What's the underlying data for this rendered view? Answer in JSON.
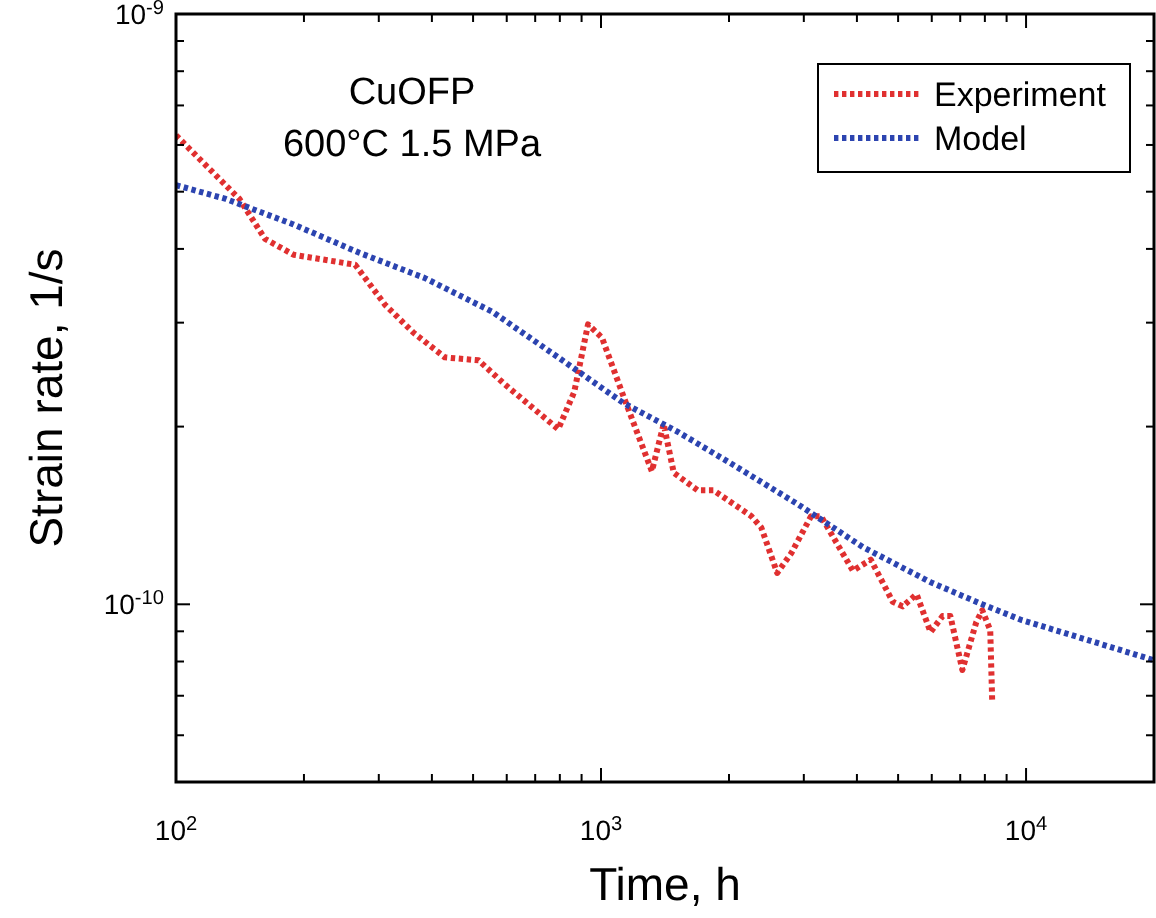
{
  "chart_data": {
    "type": "line",
    "xlabel": "Time, h",
    "ylabel": "Strain rate, 1/s",
    "log": "xy",
    "legend": "top right",
    "line_style": "dotted",
    "annotations": [
      "CuOFP",
      "600°C 1.5 MPa"
    ],
    "xlim": [
      100,
      20000
    ],
    "ylim": [
      5e-11,
      1e-09
    ],
    "xticks": [
      {
        "value": 100,
        "label": "10$^{2}$"
      },
      {
        "value": 200,
        "label": null
      },
      {
        "value": 300,
        "label": null
      },
      {
        "value": 400,
        "label": null
      },
      {
        "value": 500,
        "label": null
      },
      {
        "value": 600,
        "label": null
      },
      {
        "value": 700,
        "label": null
      },
      {
        "value": 800,
        "label": null
      },
      {
        "value": 900,
        "label": null
      },
      {
        "value": 1000,
        "label": "10$^{3}$"
      },
      {
        "value": 2000,
        "label": null
      },
      {
        "value": 3000,
        "label": null
      },
      {
        "value": 4000,
        "label": null
      },
      {
        "value": 5000,
        "label": null
      },
      {
        "value": 6000,
        "label": null
      },
      {
        "value": 7000,
        "label": null
      },
      {
        "value": 8000,
        "label": null
      },
      {
        "value": 9000,
        "label": null
      },
      {
        "value": 10000,
        "label": "10$^{4}$"
      },
      {
        "value": 20000,
        "label": null
      }
    ],
    "yticks": [
      {
        "value": 6e-11,
        "label": null
      },
      {
        "value": 7e-11,
        "label": null
      },
      {
        "value": 8e-11,
        "label": null
      },
      {
        "value": 9e-11,
        "label": null
      },
      {
        "value": 1e-10,
        "label": "10$^{-10}$"
      },
      {
        "value": 2e-10,
        "label": null
      },
      {
        "value": 3e-10,
        "label": null
      },
      {
        "value": 4e-10,
        "label": null
      },
      {
        "value": 5e-10,
        "label": null
      },
      {
        "value": 6e-10,
        "label": null
      },
      {
        "value": 7e-10,
        "label": null
      },
      {
        "value": 8e-10,
        "label": null
      },
      {
        "value": 9e-10,
        "label": null
      },
      {
        "value": 1e-09,
        "label": "10$^{-9}$"
      }
    ],
    "series": [
      {
        "name": "Experiment",
        "color": "#e03030",
        "x": [
          100,
          120,
          141,
          162,
          189,
          264,
          310,
          361,
          429,
          515,
          593,
          793,
          865,
          932,
          1005,
          1132,
          1317,
          1404,
          1483,
          1688,
          1839,
          2258,
          2382,
          2597,
          2802,
          3120,
          3293,
          3913,
          4312,
          4856,
          5124,
          5527,
          5961,
          6361,
          6637,
          7082,
          7637,
          7888,
          8236,
          8325
        ],
        "values": [
          6.23e-10,
          5.46e-10,
          4.86e-10,
          4.16e-10,
          3.91e-10,
          3.76e-10,
          3.22e-10,
          2.89e-10,
          2.62e-10,
          2.59e-10,
          2.36e-10,
          1.98e-10,
          2.29e-10,
          2.98e-10,
          2.83e-10,
          2.24e-10,
          1.68e-10,
          2.02e-10,
          1.67e-10,
          1.56e-10,
          1.56e-10,
          1.41e-10,
          1.35e-10,
          1.13e-10,
          1.22e-10,
          1.41e-10,
          1.41e-10,
          1.14e-10,
          1.19e-10,
          1.01e-10,
          9.92e-11,
          1.04e-10,
          8.97e-11,
          9.55e-11,
          9.55e-11,
          7.74e-11,
          9.33e-11,
          9.77e-11,
          9.04e-11,
          6.84e-11
        ]
      },
      {
        "name": "Model",
        "color": "#2c44b0",
        "x": [
          100,
          131,
          189,
          270,
          385,
          555,
          793,
          1132,
          1515,
          2027,
          2893,
          4130,
          5961,
          7888,
          9787,
          12140,
          20000
        ],
        "values": [
          5.13e-10,
          4.86e-10,
          4.4e-10,
          3.94e-10,
          3.57e-10,
          3.13e-10,
          2.62e-10,
          2.19e-10,
          1.96e-10,
          1.73e-10,
          1.48e-10,
          1.25e-10,
          1.09e-10,
          1e-10,
          9.4e-11,
          8.97e-11,
          8.04e-11
        ]
      }
    ]
  }
}
